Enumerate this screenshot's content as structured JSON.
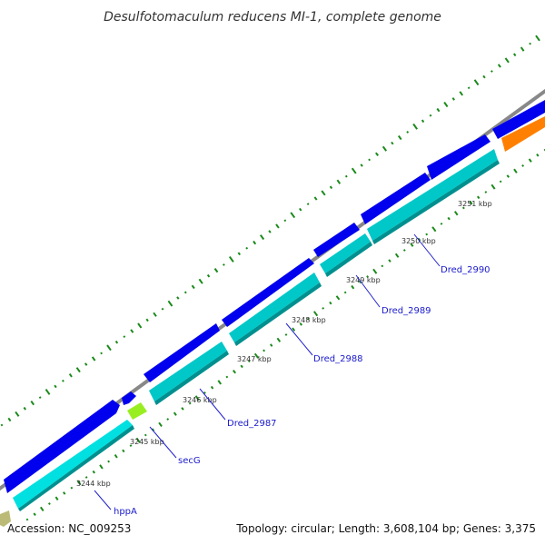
{
  "title": "Desulfotomaculum reducens MI-1, complete genome",
  "footer": {
    "accession": "Accession: NC_009253",
    "summary": "Topology: circular; Length: 3,608,104 bp; Genes: 3,375"
  },
  "colors": {
    "backbone": "#888888",
    "forward_gene": "#0000ee",
    "reverse_gene": "#00cccc",
    "reverse_gene_shade": "#008f8f",
    "orange_gene": "#ff8000",
    "lime_gene": "#99ee22",
    "olive_gene": "#bbbb77",
    "gc_ticks": "#1a8a1a",
    "label_line": "#2222cc"
  },
  "kbp_labels": [
    "3244 kbp",
    "3245 kbp",
    "3246 kbp",
    "3247 kbp",
    "3248 kbp",
    "3249 kbp",
    "3250 kbp",
    "3251 kbp"
  ],
  "gene_labels": [
    "hppA",
    "secG",
    "Dred_2987",
    "Dred_2988",
    "Dred_2989",
    "Dred_2990"
  ]
}
